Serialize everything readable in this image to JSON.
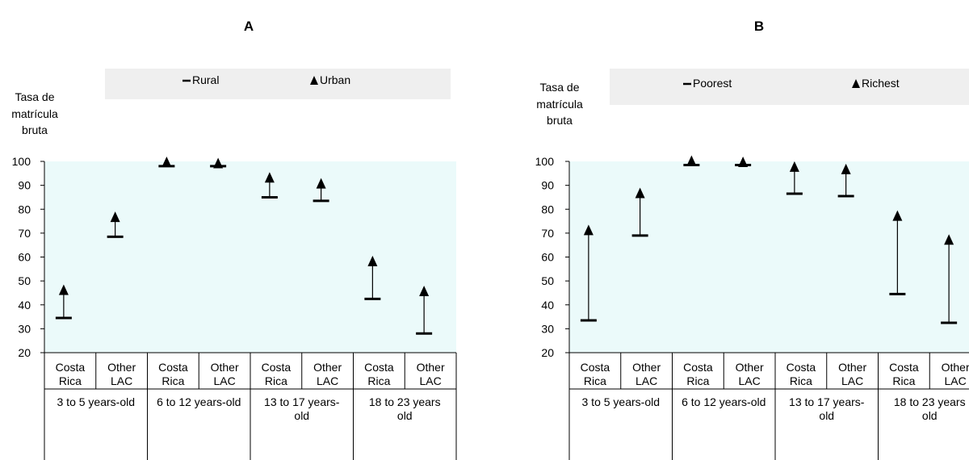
{
  "chart_data": [
    {
      "type": "range",
      "title": "A",
      "ylabel": [
        "Tasa de",
        "matrícula",
        "bruta"
      ],
      "ylim": [
        20,
        100
      ],
      "yticks": [
        20,
        30,
        40,
        50,
        60,
        70,
        80,
        90,
        100
      ],
      "legend": {
        "placement": "top",
        "entries": [
          {
            "symbol": "–",
            "label": "Rural"
          },
          {
            "symbol": "▲",
            "label": "Urban"
          }
        ]
      },
      "groups": [
        {
          "label": [
            "3 to 5 years-old"
          ],
          "categories": [
            [
              "Costa",
              "Rica"
            ],
            [
              "Other",
              "LAC"
            ]
          ]
        },
        {
          "label": [
            "6 to 12 years-old"
          ],
          "categories": [
            [
              "Costa",
              "Rica"
            ],
            [
              "Other",
              "LAC"
            ]
          ]
        },
        {
          "label": [
            "13 to 17 years-",
            "old"
          ],
          "categories": [
            [
              "Costa",
              "Rica"
            ],
            [
              "Other",
              "LAC"
            ]
          ]
        },
        {
          "label": [
            "18 to 23 years",
            "old"
          ],
          "categories": [
            [
              "Costa",
              "Rica"
            ],
            [
              "Other",
              "LAC"
            ]
          ]
        }
      ],
      "series": [
        {
          "name": "Rural",
          "values": [
            34.5,
            68.5,
            98,
            98,
            85,
            83.5,
            42.5,
            28
          ]
        },
        {
          "name": "Urban",
          "values": [
            45.5,
            76,
            99,
            98.5,
            92.5,
            90,
            57.5,
            45
          ]
        }
      ],
      "grid": false
    },
    {
      "type": "range",
      "title": "B",
      "ylabel": [
        "Tasa de",
        "matrícula",
        "bruta"
      ],
      "ylim": [
        20,
        100
      ],
      "yticks": [
        20,
        30,
        40,
        50,
        60,
        70,
        80,
        90,
        100
      ],
      "legend": {
        "placement": "top",
        "entries": [
          {
            "symbol": "–",
            "label": "Poorest"
          },
          {
            "symbol": "▲",
            "label": "Richest"
          }
        ]
      },
      "groups": [
        {
          "label": [
            "3 to 5 years-old"
          ],
          "categories": [
            [
              "Costa",
              "Rica"
            ],
            [
              "Other",
              "LAC"
            ]
          ]
        },
        {
          "label": [
            "6 to 12 years-old"
          ],
          "categories": [
            [
              "Costa",
              "Rica"
            ],
            [
              "Other",
              "LAC"
            ]
          ]
        },
        {
          "label": [
            "13 to 17 years-",
            "old"
          ],
          "categories": [
            [
              "Costa",
              "Rica"
            ],
            [
              "Other",
              "LAC"
            ]
          ]
        },
        {
          "label": [
            "18 to 23 years",
            "old"
          ],
          "categories": [
            [
              "Costa",
              "Rica"
            ],
            [
              "Other",
              "LAC"
            ]
          ]
        }
      ],
      "series": [
        {
          "name": "Poorest",
          "values": [
            33.5,
            69,
            98.5,
            98.5,
            86.5,
            85.5,
            44.5,
            32.5
          ]
        },
        {
          "name": "Richest",
          "values": [
            70.5,
            86,
            99.5,
            99,
            97,
            96,
            76.5,
            66.5
          ]
        }
      ],
      "grid": false
    }
  ]
}
